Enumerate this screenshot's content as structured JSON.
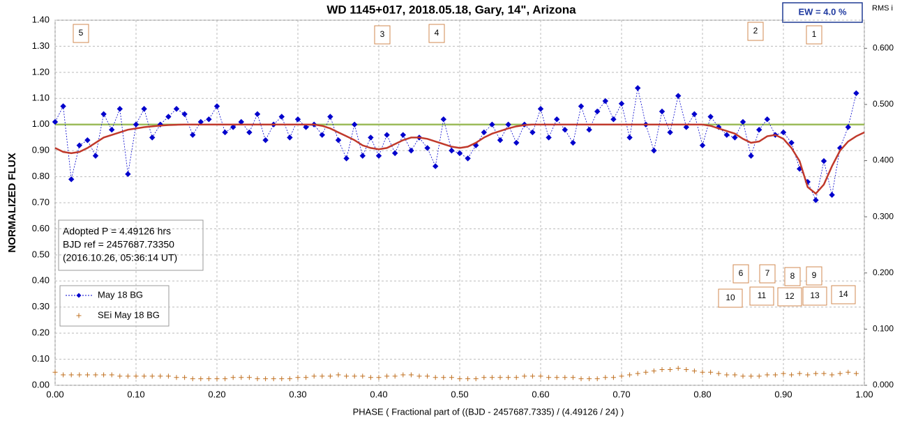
{
  "chart_data": {
    "type": "scatter",
    "title": "WD 1145+017, 2018.05.18, Gary,  14\", Arizona",
    "x_label": "PHASE  ( Fractional part of ((BJD - 2457687.7335)  / (4.49126  / 24) )",
    "y_label": "NORMALIZED  FLUX",
    "y2_label": "RMS i",
    "ew_label": "EW =  4.0 %",
    "info_lines": [
      "Adopted P = 4.49126 hrs",
      "BJD ref = 2457687.73350",
      "(2016.10.26, 05:36:14 UT)"
    ],
    "annotations": [
      "5",
      "3",
      "4",
      "2",
      "1",
      "6",
      "7",
      "8",
      "9",
      "10",
      "11",
      "12",
      "13",
      "14"
    ],
    "grid": true,
    "legend": "lower-left",
    "xlim": [
      0,
      1
    ],
    "ylim": [
      0,
      1.4
    ],
    "y2lim": [
      0,
      0.65
    ],
    "xticks": [
      {
        "value": 0,
        "label": "0.00"
      },
      {
        "value": 0.1,
        "label": "0.10"
      },
      {
        "value": 0.2,
        "label": "0.20"
      },
      {
        "value": 0.3,
        "label": "0.30"
      },
      {
        "value": 0.4,
        "label": "0.40"
      },
      {
        "value": 0.5,
        "label": "0.50"
      },
      {
        "value": 0.6,
        "label": "0.60"
      },
      {
        "value": 0.7,
        "label": "0.70"
      },
      {
        "value": 0.8,
        "label": "0.80"
      },
      {
        "value": 0.9,
        "label": "0.90"
      },
      {
        "value": 1,
        "label": "1.00"
      }
    ],
    "yticks": [
      {
        "value": 0,
        "label": "0.00"
      },
      {
        "value": 0.1,
        "label": "0.10"
      },
      {
        "value": 0.2,
        "label": "0.20"
      },
      {
        "value": 0.3,
        "label": "0.30"
      },
      {
        "value": 0.4,
        "label": "0.40"
      },
      {
        "value": 0.5,
        "label": "0.50"
      },
      {
        "value": 0.6,
        "label": "0.60"
      },
      {
        "value": 0.7,
        "label": "0.70"
      },
      {
        "value": 0.8,
        "label": "0.80"
      },
      {
        "value": 0.9,
        "label": "0.90"
      },
      {
        "value": 1,
        "label": "1.00"
      },
      {
        "value": 1.1,
        "label": "1.10"
      },
      {
        "value": 1.2,
        "label": "1.20"
      },
      {
        "value": 1.3,
        "label": "1.30"
      },
      {
        "value": 1.4,
        "label": "1.40"
      }
    ],
    "y2ticks": [
      {
        "value": 0,
        "label": "0.000"
      },
      {
        "value": 0.1,
        "label": "0.100"
      },
      {
        "value": 0.2,
        "label": "0.200"
      },
      {
        "value": 0.3,
        "label": "0.300"
      },
      {
        "value": 0.4,
        "label": "0.400"
      },
      {
        "value": 0.5,
        "label": "0.500"
      },
      {
        "value": 0.6,
        "label": "0.600"
      }
    ],
    "reference_line": 1.0,
    "reference_color": "#9bbb59",
    "x": [
      0,
      0.01,
      0.02,
      0.03,
      0.04,
      0.05,
      0.06,
      0.07,
      0.08,
      0.09,
      0.1,
      0.11,
      0.12,
      0.13,
      0.14,
      0.15,
      0.16,
      0.17,
      0.18,
      0.19,
      0.2,
      0.21,
      0.22,
      0.23,
      0.24,
      0.25,
      0.26,
      0.27,
      0.28,
      0.29,
      0.3,
      0.31,
      0.32,
      0.33,
      0.34,
      0.35,
      0.36,
      0.37,
      0.38,
      0.39,
      0.4,
      0.41,
      0.42,
      0.43,
      0.44,
      0.45,
      0.46,
      0.47,
      0.48,
      0.49,
      0.5,
      0.51,
      0.52,
      0.53,
      0.54,
      0.55,
      0.56,
      0.57,
      0.58,
      0.59,
      0.6,
      0.61,
      0.62,
      0.63,
      0.64,
      0.65,
      0.66,
      0.67,
      0.68,
      0.69,
      0.7,
      0.71,
      0.72,
      0.73,
      0.74,
      0.75,
      0.76,
      0.77,
      0.78,
      0.79,
      0.8,
      0.81,
      0.82,
      0.83,
      0.84,
      0.85,
      0.86,
      0.87,
      0.88,
      0.89,
      0.9,
      0.91,
      0.92,
      0.93,
      0.94,
      0.95,
      0.96,
      0.97,
      0.98,
      0.99
    ],
    "series": [
      {
        "name": "May 18 BG",
        "color": "#0000cc",
        "style": "diamond-dotted",
        "values": [
          1.01,
          1.07,
          0.79,
          0.92,
          0.94,
          0.88,
          1.04,
          0.98,
          1.06,
          0.81,
          1.0,
          1.06,
          0.95,
          1.0,
          1.03,
          1.06,
          1.04,
          0.96,
          1.01,
          1.02,
          1.07,
          0.97,
          0.99,
          1.01,
          0.97,
          1.04,
          0.94,
          1.0,
          1.03,
          0.95,
          1.02,
          0.99,
          1.0,
          0.96,
          1.03,
          0.94,
          0.87,
          1.0,
          0.88,
          0.95,
          0.88,
          0.96,
          0.89,
          0.96,
          0.9,
          0.95,
          0.91,
          0.84,
          1.02,
          0.9,
          0.89,
          0.87,
          0.92,
          0.97,
          1.0,
          0.94,
          1.0,
          0.93,
          1.0,
          0.97,
          1.06,
          0.95,
          1.02,
          0.98,
          0.93,
          1.07,
          0.98,
          1.05,
          1.09,
          1.02,
          1.08,
          0.95,
          1.14,
          1.0,
          0.9,
          1.05,
          0.97,
          1.11,
          0.99,
          1.04,
          0.92,
          1.03,
          0.99,
          0.96,
          0.95,
          1.01,
          0.88,
          0.98,
          1.02,
          0.96,
          0.97,
          0.93,
          0.83,
          0.78,
          0.71,
          0.86,
          0.73,
          0.91,
          0.99,
          1.12
        ]
      },
      {
        "name": "SEi May 18 BG",
        "color": "#c07020",
        "style": "plus",
        "values": [
          0.05,
          0.04,
          0.04,
          0.04,
          0.04,
          0.04,
          0.04,
          0.04,
          0.035,
          0.035,
          0.035,
          0.035,
          0.035,
          0.035,
          0.035,
          0.03,
          0.03,
          0.025,
          0.025,
          0.025,
          0.025,
          0.025,
          0.03,
          0.03,
          0.03,
          0.025,
          0.025,
          0.025,
          0.025,
          0.025,
          0.03,
          0.03,
          0.035,
          0.035,
          0.035,
          0.04,
          0.035,
          0.035,
          0.035,
          0.03,
          0.03,
          0.035,
          0.035,
          0.04,
          0.04,
          0.035,
          0.035,
          0.03,
          0.03,
          0.03,
          0.025,
          0.025,
          0.025,
          0.03,
          0.03,
          0.03,
          0.03,
          0.03,
          0.035,
          0.035,
          0.035,
          0.03,
          0.03,
          0.03,
          0.03,
          0.025,
          0.025,
          0.025,
          0.03,
          0.03,
          0.035,
          0.04,
          0.045,
          0.05,
          0.055,
          0.06,
          0.06,
          0.065,
          0.06,
          0.055,
          0.05,
          0.05,
          0.045,
          0.04,
          0.04,
          0.035,
          0.035,
          0.035,
          0.04,
          0.04,
          0.045,
          0.04,
          0.045,
          0.04,
          0.045,
          0.045,
          0.04,
          0.045,
          0.05,
          0.045
        ]
      },
      {
        "color": "#c0392b",
        "style": "curve",
        "x": [
          0,
          0.01,
          0.02,
          0.03,
          0.04,
          0.05,
          0.06,
          0.07,
          0.08,
          0.09,
          0.1,
          0.11,
          0.12,
          0.13,
          0.14,
          0.15,
          0.16,
          0.17,
          0.18,
          0.19,
          0.2,
          0.21,
          0.22,
          0.23,
          0.24,
          0.25,
          0.26,
          0.27,
          0.28,
          0.29,
          0.3,
          0.31,
          0.32,
          0.33,
          0.34,
          0.35,
          0.36,
          0.37,
          0.38,
          0.39,
          0.4,
          0.41,
          0.42,
          0.43,
          0.44,
          0.45,
          0.46,
          0.47,
          0.48,
          0.49,
          0.5,
          0.51,
          0.52,
          0.53,
          0.54,
          0.55,
          0.56,
          0.57,
          0.58,
          0.59,
          0.6,
          0.61,
          0.62,
          0.63,
          0.64,
          0.65,
          0.66,
          0.67,
          0.68,
          0.69,
          0.7,
          0.71,
          0.72,
          0.73,
          0.74,
          0.75,
          0.76,
          0.77,
          0.78,
          0.79,
          0.8,
          0.81,
          0.82,
          0.83,
          0.84,
          0.85,
          0.86,
          0.87,
          0.88,
          0.89,
          0.9,
          0.91,
          0.92,
          0.93,
          0.94,
          0.95,
          0.96,
          0.97,
          0.98,
          0.99,
          1
        ],
        "values": [
          0.91,
          0.895,
          0.89,
          0.895,
          0.91,
          0.93,
          0.95,
          0.96,
          0.97,
          0.98,
          0.985,
          0.99,
          0.993,
          0.996,
          0.998,
          0.999,
          1,
          1,
          1,
          1,
          1,
          1,
          1,
          1,
          1,
          1,
          1,
          1,
          1,
          1,
          1,
          1,
          1,
          0.995,
          0.985,
          0.97,
          0.955,
          0.94,
          0.92,
          0.91,
          0.905,
          0.91,
          0.925,
          0.94,
          0.95,
          0.95,
          0.945,
          0.935,
          0.925,
          0.915,
          0.91,
          0.915,
          0.93,
          0.95,
          0.965,
          0.975,
          0.985,
          0.993,
          0.998,
          1,
          1,
          1,
          1,
          1,
          1,
          1,
          1,
          1,
          1,
          1,
          1,
          1,
          1,
          1,
          1,
          1,
          1,
          1,
          1,
          1,
          1,
          0.995,
          0.985,
          0.975,
          0.965,
          0.945,
          0.93,
          0.935,
          0.955,
          0.96,
          0.945,
          0.91,
          0.86,
          0.76,
          0.735,
          0.77,
          0.84,
          0.9,
          0.935,
          0.955,
          0.97
        ]
      }
    ]
  }
}
